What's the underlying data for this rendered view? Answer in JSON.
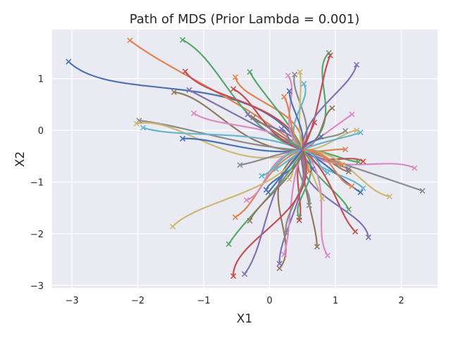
{
  "chart_data": {
    "type": "line",
    "title": "Path of MDS (Prior Lambda = 0.001)",
    "xlabel": "X1",
    "ylabel": "X2",
    "xlim": [
      -3.3,
      2.55
    ],
    "ylim": [
      -3.05,
      1.95
    ],
    "xticks": [
      -3,
      -2,
      -1,
      0,
      1,
      2
    ],
    "yticks": [
      -3,
      -2,
      -1,
      0,
      1
    ],
    "grid": true,
    "background": "#eaeaf2",
    "grid_color": "#ffffff",
    "marker": "x",
    "center": [
      0.5,
      -0.38
    ],
    "palette": [
      "#4c72b0",
      "#dd8452",
      "#55a868",
      "#c44e52",
      "#8172b3",
      "#937860",
      "#da8bc3",
      "#8c8c8c",
      "#ccb974",
      "#64b5cd"
    ],
    "endpoints": [
      [
        -3.05,
        1.33
      ],
      [
        -2.12,
        1.74
      ],
      [
        -1.32,
        1.75
      ],
      [
        -1.28,
        1.14
      ],
      [
        -1.22,
        0.78
      ],
      [
        -1.45,
        0.74
      ],
      [
        -1.15,
        0.33
      ],
      [
        -1.98,
        0.19
      ],
      [
        -2.02,
        0.13
      ],
      [
        -1.92,
        0.05
      ],
      [
        -1.32,
        -0.16
      ],
      [
        -0.52,
        1.03
      ],
      [
        -0.3,
        1.13
      ],
      [
        -0.55,
        0.8
      ],
      [
        -0.33,
        0.31
      ],
      [
        -0.25,
        0.25
      ],
      [
        0.28,
        1.06
      ],
      [
        0.38,
        1.08
      ],
      [
        0.46,
        1.13
      ],
      [
        0.52,
        0.9
      ],
      [
        0.3,
        0.76
      ],
      [
        0.22,
        0.65
      ],
      [
        0.9,
        1.5
      ],
      [
        0.92,
        1.45
      ],
      [
        1.32,
        1.27
      ],
      [
        0.95,
        0.43
      ],
      [
        1.25,
        0.31
      ],
      [
        1.15,
        -0.01
      ],
      [
        1.32,
        0.0
      ],
      [
        1.38,
        -0.04
      ],
      [
        0.78,
        -0.12
      ],
      [
        1.15,
        -0.37
      ],
      [
        1.35,
        -0.61
      ],
      [
        1.42,
        -0.6
      ],
      [
        1.2,
        -0.75
      ],
      [
        1.2,
        -0.8
      ],
      [
        2.2,
        -0.73
      ],
      [
        2.32,
        -1.17
      ],
      [
        1.82,
        -1.28
      ],
      [
        1.42,
        -1.12
      ],
      [
        1.38,
        -1.2
      ],
      [
        1.25,
        -1.08
      ],
      [
        1.2,
        -1.53
      ],
      [
        1.3,
        -1.96
      ],
      [
        1.5,
        -2.07
      ],
      [
        0.72,
        -2.25
      ],
      [
        0.88,
        -2.42
      ],
      [
        0.6,
        -1.45
      ],
      [
        0.8,
        -1.32
      ],
      [
        0.88,
        -0.82
      ],
      [
        0.65,
        -0.75
      ],
      [
        0.6,
        -0.8
      ],
      [
        0.45,
        -1.68
      ],
      [
        0.45,
        -1.74
      ],
      [
        0.15,
        -2.58
      ],
      [
        0.15,
        -2.67
      ],
      [
        0.22,
        -2.4
      ],
      [
        0.25,
        -1.98
      ],
      [
        0.3,
        -0.95
      ],
      [
        0.1,
        -0.75
      ],
      [
        -0.05,
        -1.15
      ],
      [
        -0.52,
        -1.68
      ],
      [
        -0.62,
        -2.2
      ],
      [
        -0.55,
        -2.82
      ],
      [
        -0.38,
        -2.78
      ],
      [
        -0.3,
        -1.75
      ],
      [
        -0.35,
        -1.35
      ],
      [
        -0.45,
        -0.67
      ],
      [
        -1.47,
        -1.86
      ],
      [
        -0.12,
        -0.88
      ],
      [
        -0.02,
        -1.2
      ],
      [
        1.1,
        -0.67
      ],
      [
        0.32,
        -0.22
      ],
      [
        0.68,
        0.15
      ],
      [
        0.18,
        0.03
      ]
    ]
  }
}
